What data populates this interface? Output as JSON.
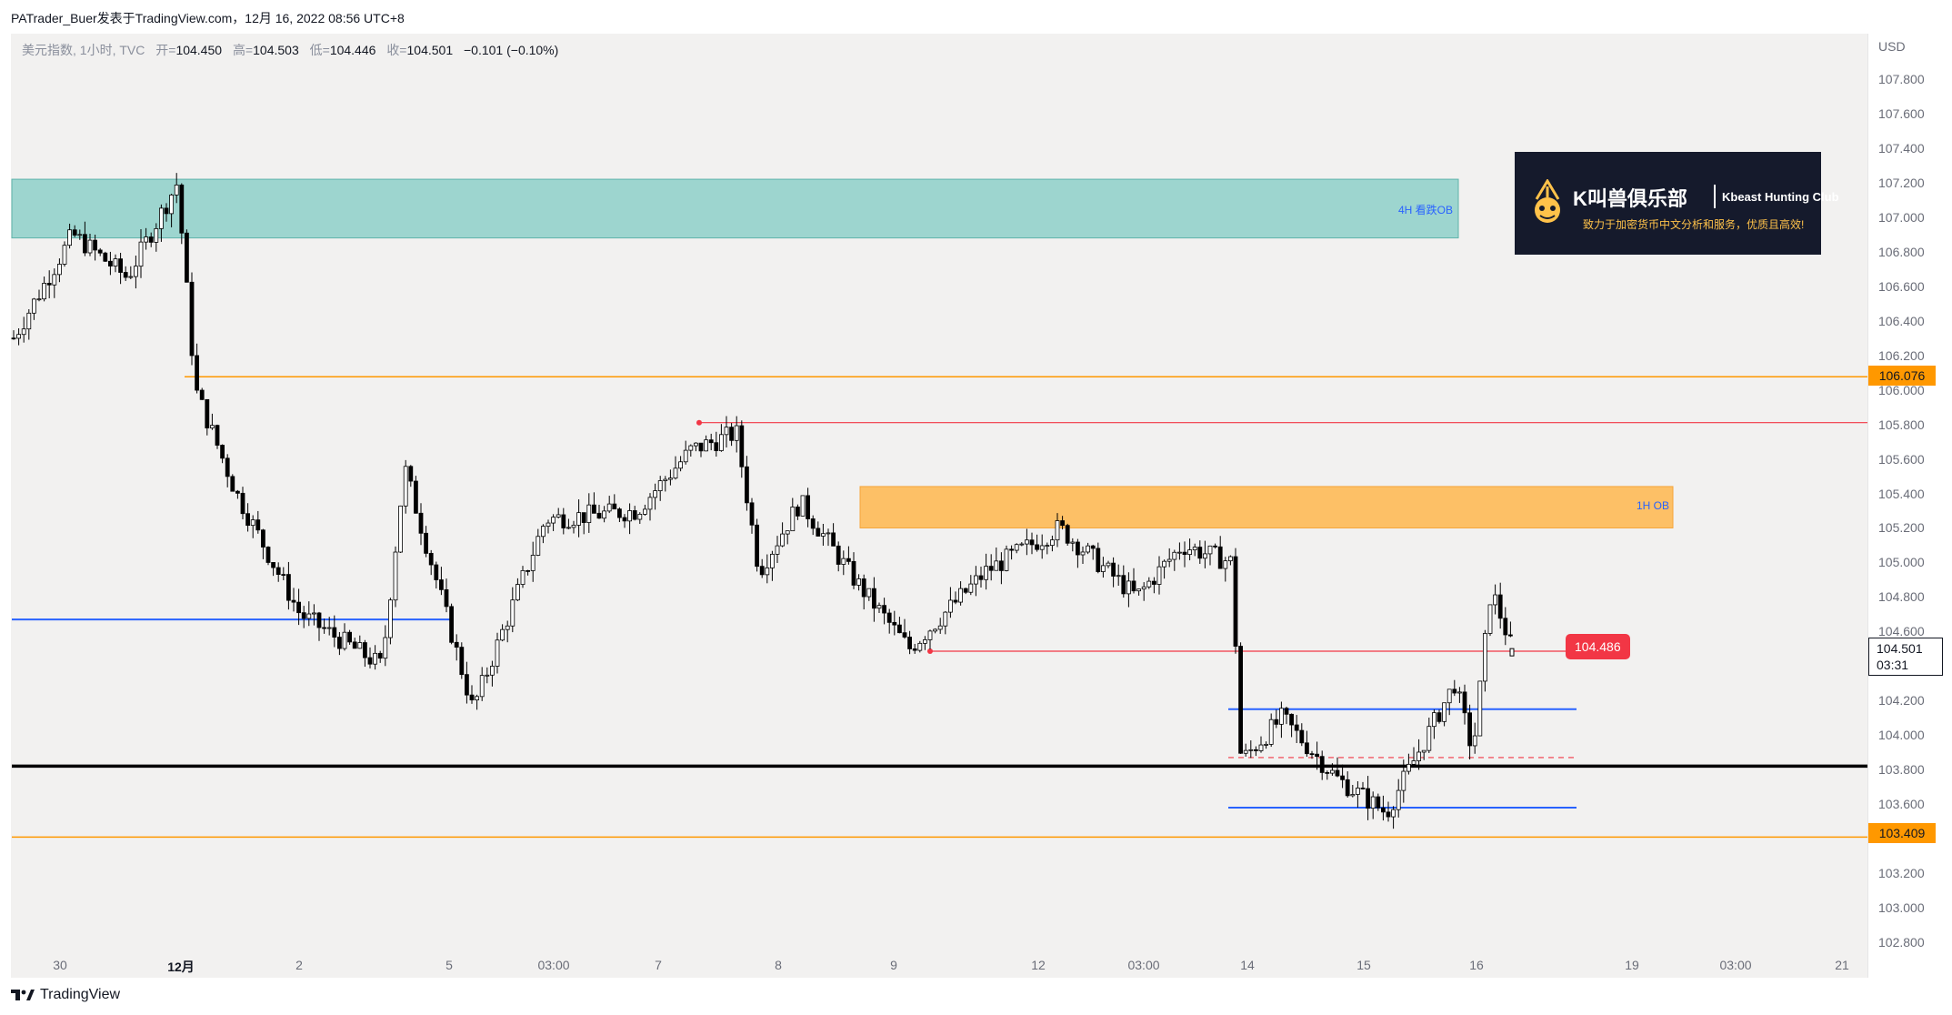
{
  "header": {
    "publish_line": "PATrader_Buer发表于TradingView.com，12月 16, 2022 08:56 UTC+8"
  },
  "legend": {
    "symbol_line": "美元指数, 1小时, TVC",
    "open_label": "开=",
    "open_value": "104.450",
    "high_label": "高=",
    "high_value": "104.503",
    "low_label": "低=",
    "low_value": "104.446",
    "close_label": "收=",
    "close_value": "104.501",
    "change": "−0.101 (−0.10%)"
  },
  "price_scale": {
    "currency": "USD",
    "ticks": [
      "107.800",
      "107.600",
      "107.400",
      "107.200",
      "107.000",
      "106.800",
      "106.600",
      "106.400",
      "106.200",
      "106.000",
      "105.800",
      "105.600",
      "105.400",
      "105.200",
      "105.000",
      "104.800",
      "104.600",
      "104.200",
      "104.000",
      "103.800",
      "103.600",
      "103.200",
      "103.000",
      "102.800"
    ],
    "tag_upper": "106.076",
    "tag_lower": "103.409",
    "current_price": "104.501",
    "countdown": "03:31"
  },
  "time_axis": {
    "ticks": [
      "30",
      "12月",
      "2",
      "5",
      "03:00",
      "7",
      "8",
      "9",
      "12",
      "03:00",
      "14",
      "15",
      "16",
      "19",
      "03:00",
      "21"
    ]
  },
  "annotations": {
    "zone_4h": "4H 看跌OB",
    "zone_1h": "1H OB",
    "price_pill": "104.486"
  },
  "branding": {
    "logo_title": "K叫兽俱乐部",
    "logo_en": "Kbeast Hunting Club",
    "logo_sub": "致力于加密货币中文分析和服务，优质且高效!",
    "footer": "TradingView"
  },
  "colors": {
    "up_candle": "#ffffff",
    "down_candle": "#000000",
    "zone_4h": "#80cbc4",
    "zone_1h": "#ffb74d",
    "orange_line": "#ff9800",
    "red_line": "#f23645",
    "blue_line": "#2962ff",
    "support_line": "#000000"
  },
  "chart_data": {
    "type": "candlestick",
    "symbol": "美元指数",
    "interval": "1小时",
    "ylim": [
      102.8,
      107.8
    ],
    "y_unit": "USD",
    "x_ticks": [
      "30",
      "12月",
      "2",
      "5",
      "03:00",
      "7",
      "8",
      "9",
      "12",
      "03:00",
      "14",
      "15",
      "16",
      "19",
      "03:00",
      "21"
    ],
    "keypoints": [
      {
        "x": "30",
        "price": 106.3
      },
      {
        "x": "30",
        "price": 106.9
      },
      {
        "x": "12月",
        "price": 106.65
      },
      {
        "x": "12月",
        "price": 107.2
      },
      {
        "x": "12月",
        "price": 106.0
      },
      {
        "x": "2",
        "price": 105.4
      },
      {
        "x": "2",
        "price": 104.7
      },
      {
        "x": "5",
        "price": 104.4
      },
      {
        "x": "5",
        "price": 105.55
      },
      {
        "x": "5",
        "price": 104.15
      },
      {
        "x": "03:00",
        "price": 105.25
      },
      {
        "x": "7",
        "price": 105.3
      },
      {
        "x": "7",
        "price": 105.65
      },
      {
        "x": "8",
        "price": 105.75
      },
      {
        "x": "8",
        "price": 104.95
      },
      {
        "x": "8",
        "price": 105.35
      },
      {
        "x": "9",
        "price": 104.9
      },
      {
        "x": "9",
        "price": 104.5
      },
      {
        "x": "12",
        "price": 104.95
      },
      {
        "x": "12",
        "price": 105.2
      },
      {
        "x": "03:00",
        "price": 104.8
      },
      {
        "x": "03:00",
        "price": 105.1
      },
      {
        "x": "14",
        "price": 105.0
      },
      {
        "x": "14",
        "price": 103.85
      },
      {
        "x": "14",
        "price": 104.1
      },
      {
        "x": "15",
        "price": 103.75
      },
      {
        "x": "15",
        "price": 103.55
      },
      {
        "x": "15",
        "price": 103.9
      },
      {
        "x": "16",
        "price": 104.3
      },
      {
        "x": "16",
        "price": 103.9
      },
      {
        "x": "16",
        "price": 104.85
      },
      {
        "x": "16",
        "price": 104.5
      }
    ],
    "ohlc_last": {
      "open": 104.45,
      "high": 104.503,
      "low": 104.446,
      "close": 104.501
    },
    "levels": [
      {
        "price": 106.076,
        "color": "#ff9800"
      },
      {
        "price": 103.409,
        "color": "#ff9800"
      },
      {
        "price": 103.82,
        "color": "#000000"
      },
      {
        "price": 105.81,
        "color": "#f23645"
      },
      {
        "price": 104.486,
        "color": "#f23645"
      },
      {
        "price": 104.67,
        "color": "#2962ff"
      }
    ],
    "zones": [
      {
        "label": "4H 看跌OB",
        "from": 106.88,
        "to": 107.22,
        "color": "#80cbc4"
      },
      {
        "label": "1H OB",
        "from": 105.2,
        "to": 105.44,
        "color": "#ffb74d"
      }
    ],
    "range_box": {
      "top": 104.15,
      "bottom": 103.58,
      "mid": 103.87
    },
    "grid": false
  }
}
